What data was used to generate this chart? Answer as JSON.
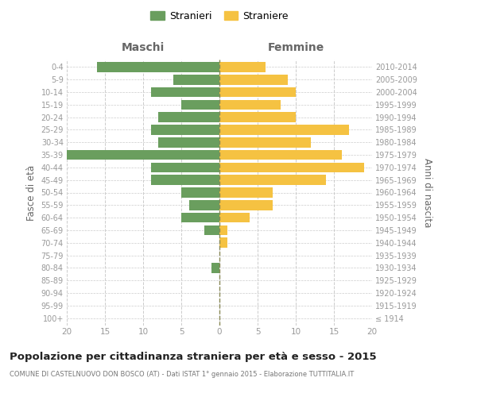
{
  "age_groups": [
    "100+",
    "95-99",
    "90-94",
    "85-89",
    "80-84",
    "75-79",
    "70-74",
    "65-69",
    "60-64",
    "55-59",
    "50-54",
    "45-49",
    "40-44",
    "35-39",
    "30-34",
    "25-29",
    "20-24",
    "15-19",
    "10-14",
    "5-9",
    "0-4"
  ],
  "birth_years": [
    "≤ 1914",
    "1915-1919",
    "1920-1924",
    "1925-1929",
    "1930-1934",
    "1935-1939",
    "1940-1944",
    "1945-1949",
    "1950-1954",
    "1955-1959",
    "1960-1964",
    "1965-1969",
    "1970-1974",
    "1975-1979",
    "1980-1984",
    "1985-1989",
    "1990-1994",
    "1995-1999",
    "2000-2004",
    "2005-2009",
    "2010-2014"
  ],
  "maschi": [
    0,
    0,
    0,
    0,
    1,
    0,
    0,
    2,
    5,
    4,
    5,
    9,
    9,
    20,
    8,
    9,
    8,
    5,
    9,
    6,
    16
  ],
  "femmine": [
    0,
    0,
    0,
    0,
    0,
    0,
    1,
    1,
    4,
    7,
    7,
    14,
    19,
    16,
    12,
    17,
    10,
    8,
    10,
    9,
    6
  ],
  "maschi_color": "#6a9e5e",
  "femmine_color": "#f5c242",
  "center_line_color": "#888855",
  "grid_color": "#cccccc",
  "title": "Popolazione per cittadinanza straniera per età e sesso - 2015",
  "subtitle": "COMUNE DI CASTELNUOVO DON BOSCO (AT) - Dati ISTAT 1° gennaio 2015 - Elaborazione TUTTITALIA.IT",
  "xlabel_left": "Maschi",
  "xlabel_right": "Femmine",
  "ylabel_left": "Fasce di età",
  "ylabel_right": "Anni di nascita",
  "legend_stranieri": "Stranieri",
  "legend_straniere": "Straniere",
  "xlim": 20,
  "background_color": "#ffffff",
  "bar_height": 0.8
}
